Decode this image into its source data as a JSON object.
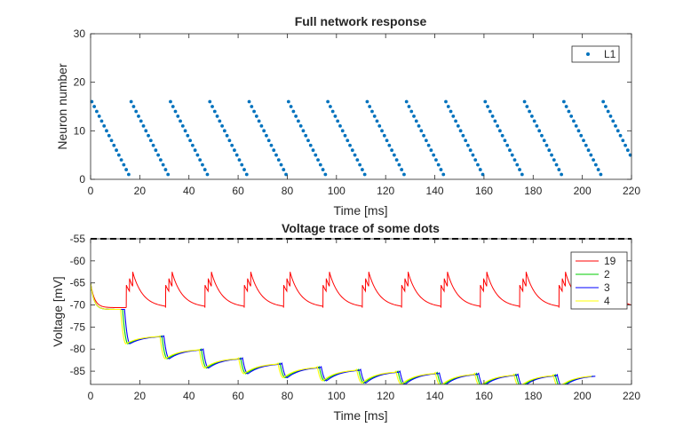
{
  "chart_data": [
    {
      "type": "scatter",
      "title": "Full network response",
      "xlabel": "Time [ms]",
      "ylabel": "Neuron number",
      "xlim": [
        0,
        220
      ],
      "ylim": [
        0,
        30
      ],
      "xticks": [
        "0",
        "20",
        "40",
        "60",
        "80",
        "100",
        "120",
        "140",
        "160",
        "180",
        "200",
        "220"
      ],
      "yticks": [
        "0",
        "10",
        "20",
        "30"
      ],
      "legend": {
        "position": "top-right",
        "entries": [
          "L1"
        ]
      },
      "series": [
        {
          "name": "L1",
          "color": "#0072BD",
          "marker": "dot",
          "pattern": {
            "burst_starts_ms": [
              0.5,
              16.5,
              32.5,
              48.5,
              64.5,
              80.5,
              96.5,
              112.5,
              128.5,
              144.5,
              160.5,
              176.5,
              192.5,
              208.5
            ],
            "neuron_range": [
              16,
              1
            ],
            "ms_per_neuron": 1.0
          }
        }
      ],
      "grid": false
    },
    {
      "type": "line",
      "title": "Voltage trace of some dots",
      "xlabel": "Time [ms]",
      "ylabel": "Voltage [mV]",
      "xlim": [
        0,
        220
      ],
      "ylim": [
        -88,
        -55
      ],
      "xticks": [
        "0",
        "20",
        "40",
        "60",
        "80",
        "100",
        "120",
        "140",
        "160",
        "180",
        "200",
        "220"
      ],
      "yticks": [
        "-55",
        "-60",
        "-65",
        "-70",
        "-75",
        "-80",
        "-85"
      ],
      "threshold_mV": -55,
      "legend": {
        "position": "top-right",
        "entries": [
          "19",
          "2",
          "3",
          "4"
        ]
      },
      "series": [
        {
          "name": "19",
          "color": "#ff0000",
          "rest_mV": -70.6,
          "peaks_mV": [
            -65.5,
            -64.0,
            -62.5
          ],
          "burst_starts_ms": [
            14.5,
            30.5,
            46.5,
            62.5,
            78.5,
            94.5,
            110.5,
            126.5,
            142.5,
            158.5,
            174.5,
            190.5,
            206.5
          ]
        },
        {
          "name": "2",
          "color": "#00cc00",
          "first_drop_ms": 13.0,
          "period_ms": 16.0,
          "plateaus_mV": [
            -71.0,
            -78.8,
            -82.2,
            -84.3,
            -85.6,
            -86.5,
            -87.2,
            -87.7,
            -88.0,
            -88.3,
            -88.4,
            -88.6,
            -88.7
          ],
          "recovered_mV": [
            -71.0,
            -77.0,
            -80.0,
            -82.0,
            -83.2,
            -84.0,
            -84.6,
            -85.0,
            -85.3,
            -85.5,
            -85.7,
            -85.8,
            -85.9
          ]
        },
        {
          "name": "3",
          "color": "#0000ff",
          "first_drop_ms": 13.8,
          "period_ms": 16.0,
          "plateaus_mV": [
            -71.0,
            -78.8,
            -82.2,
            -84.3,
            -85.6,
            -86.5,
            -87.2,
            -87.7,
            -88.0,
            -88.3,
            -88.4,
            -88.6,
            -88.7
          ],
          "recovered_mV": [
            -71.0,
            -77.0,
            -80.0,
            -82.0,
            -83.2,
            -84.0,
            -84.6,
            -85.0,
            -85.3,
            -85.5,
            -85.7,
            -85.8,
            -85.9
          ]
        },
        {
          "name": "4",
          "color": "#ffff00",
          "first_drop_ms": 12.2,
          "period_ms": 16.0,
          "plateaus_mV": [
            -71.0,
            -78.8,
            -82.2,
            -84.3,
            -85.6,
            -86.5,
            -87.2,
            -87.7,
            -88.0,
            -88.3,
            -88.4,
            -88.6,
            -88.7
          ],
          "recovered_mV": [
            -71.0,
            -77.0,
            -80.0,
            -82.0,
            -83.2,
            -84.0,
            -84.6,
            -85.0,
            -85.3,
            -85.5,
            -85.7,
            -85.8,
            -85.9
          ]
        }
      ],
      "grid": false
    }
  ]
}
